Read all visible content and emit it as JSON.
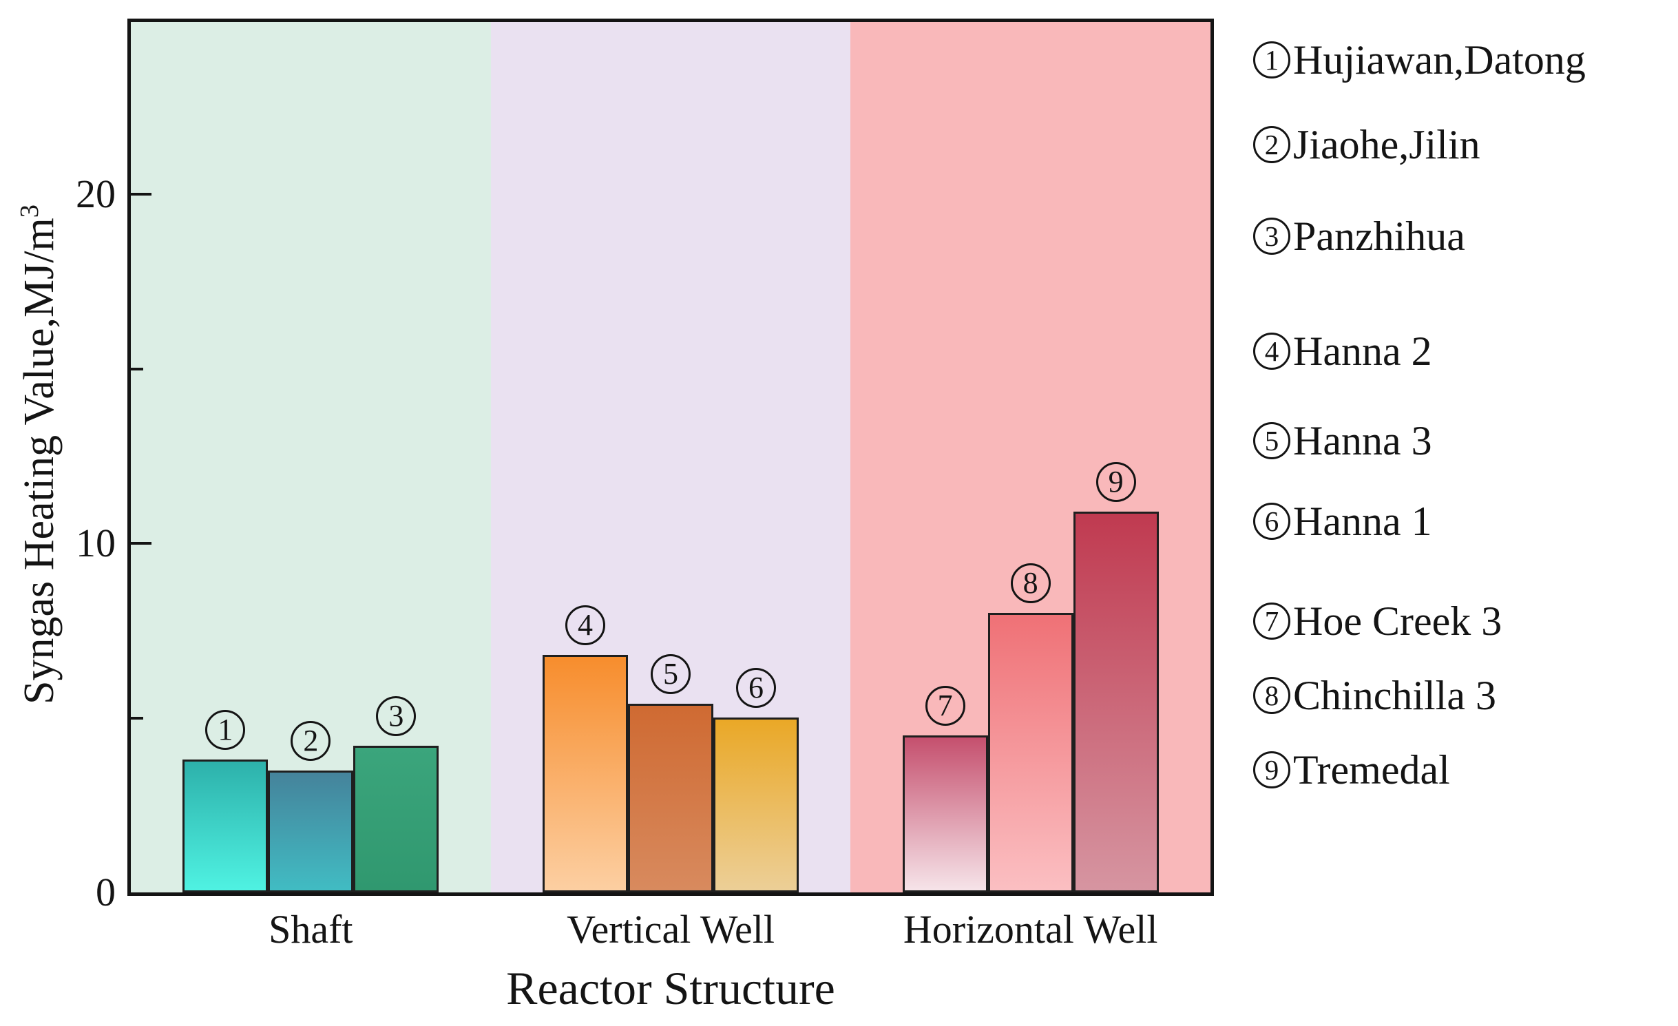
{
  "axes": {
    "x_label": "Reactor Structure",
    "y_label_main": "Syngas Heating Value,MJ/m",
    "y_label_sup": "3"
  },
  "chart_data": {
    "type": "bar",
    "title": "",
    "xlabel": "Reactor Structure",
    "ylabel": "Syngas Heating Value,MJ/m³",
    "ylim": [
      0,
      25
    ],
    "yticks_major": [
      0,
      10,
      20
    ],
    "yticks_minor": [
      5,
      15
    ],
    "grid": false,
    "legend_position": "right",
    "categories": [
      "Shaft",
      "Vertical Well",
      "Horizontal Well"
    ],
    "groups": [
      {
        "category": "Shaft",
        "section_color": "#dceee5",
        "bars": [
          {
            "id": "1",
            "name": "Hujiawan,Datong",
            "value": 3.8,
            "color_top": "#2db1ab",
            "color_bottom": "#4ff2e2"
          },
          {
            "id": "2",
            "name": "Jiaohe,Jilin",
            "value": 3.5,
            "color_top": "#45839b",
            "color_bottom": "#41bcc3"
          },
          {
            "id": "3",
            "name": "Panzhihua",
            "value": 4.2,
            "color_top": "#3ba57c",
            "color_bottom": "#30986f"
          }
        ]
      },
      {
        "category": "Vertical Well",
        "section_color": "#eae1f1",
        "bars": [
          {
            "id": "4",
            "name": "Hanna 2",
            "value": 6.8,
            "color_top": "#f78d2d",
            "color_bottom": "#fccfa2"
          },
          {
            "id": "5",
            "name": "Hanna 3",
            "value": 5.4,
            "color_top": "#cf6a32",
            "color_bottom": "#d88a5e"
          },
          {
            "id": "6",
            "name": "Hanna 1",
            "value": 5.0,
            "color_top": "#eaa827",
            "color_bottom": "#eccf97"
          }
        ]
      },
      {
        "category": "Horizontal Well",
        "section_color": "#f9b8ba",
        "bars": [
          {
            "id": "7",
            "name": "Hoe Creek 3",
            "value": 4.5,
            "color_top": "#c5506e",
            "color_bottom": "#f6e4e9"
          },
          {
            "id": "8",
            "name": "Chinchilla 3",
            "value": 8.0,
            "color_top": "#ef7176",
            "color_bottom": "#fbbfc2"
          },
          {
            "id": "9",
            "name": "Tremedal",
            "value": 10.9,
            "color_top": "#c03a50",
            "color_bottom": "#d695a1"
          }
        ]
      }
    ],
    "legend": [
      {
        "num": "1",
        "label": "Hujiawan,Datong"
      },
      {
        "num": "2",
        "label": "Jiaohe,Jilin"
      },
      {
        "num": "3",
        "label": "Panzhihua"
      },
      {
        "num": "4",
        "label": "Hanna 2"
      },
      {
        "num": "5",
        "label": "Hanna 3"
      },
      {
        "num": "6",
        "label": "Hanna 1"
      },
      {
        "num": "7",
        "label": "Hoe Creek 3"
      },
      {
        "num": "8",
        "label": "Chinchilla 3"
      },
      {
        "num": "9",
        "label": "Tremedal"
      }
    ]
  }
}
